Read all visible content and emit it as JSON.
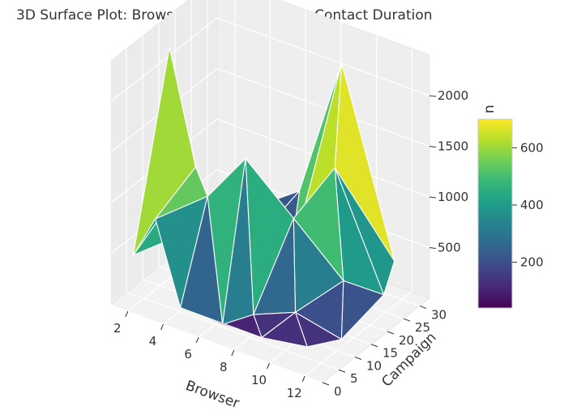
{
  "chart_data": {
    "type": "surface3d",
    "title": "3D Surface Plot: Browser vs. Campaign vs. Contact Duration",
    "xlabel": "Browser",
    "ylabel": "Campaign",
    "zlabel": "",
    "x_ticks": [
      "2",
      "4",
      "6",
      "8",
      "10",
      "12"
    ],
    "y_ticks": [
      "0",
      "5",
      "10",
      "15",
      "20",
      "25",
      "30"
    ],
    "z_ticks": [
      "500",
      "1000",
      "1500",
      "2000"
    ],
    "colorbar": {
      "label": "n",
      "ticks": [
        "200",
        "400",
        "600"
      ],
      "range": [
        40,
        700
      ],
      "colormap": "viridis"
    },
    "xlim": [
      1,
      13
    ],
    "ylim": [
      0,
      33
    ],
    "zlim": [
      0,
      2400
    ],
    "points": [
      {
        "x": 1.6,
        "y": 15,
        "z": 2200
      },
      {
        "x": 1.2,
        "y": 6,
        "z": 350
      },
      {
        "x": 1.8,
        "y": 26,
        "z": 200
      },
      {
        "x": 3.0,
        "y": 3,
        "z": 900
      },
      {
        "x": 3.2,
        "y": 18,
        "z": 250
      },
      {
        "x": 4.0,
        "y": 10,
        "z": 1300
      },
      {
        "x": 4.6,
        "y": 2,
        "z": 150
      },
      {
        "x": 5.0,
        "y": 22,
        "z": 300
      },
      {
        "x": 5.4,
        "y": 6,
        "z": 1200
      },
      {
        "x": 6.0,
        "y": 14,
        "z": 200
      },
      {
        "x": 6.2,
        "y": 30,
        "z": 700
      },
      {
        "x": 6.8,
        "y": 3,
        "z": 100
      },
      {
        "x": 7.0,
        "y": 9,
        "z": 1600
      },
      {
        "x": 7.4,
        "y": 20,
        "z": 250
      },
      {
        "x": 8.0,
        "y": 6,
        "z": 200
      },
      {
        "x": 8.4,
        "y": 32,
        "z": 600
      },
      {
        "x": 8.8,
        "y": 14,
        "z": 1000
      },
      {
        "x": 9.2,
        "y": 2,
        "z": 150
      },
      {
        "x": 9.5,
        "y": 25,
        "z": 2300
      },
      {
        "x": 10.0,
        "y": 8,
        "z": 300
      },
      {
        "x": 10.4,
        "y": 18,
        "z": 1500
      },
      {
        "x": 10.8,
        "y": 30,
        "z": 400
      },
      {
        "x": 11.4,
        "y": 4,
        "z": 150
      },
      {
        "x": 11.8,
        "y": 13,
        "z": 600
      },
      {
        "x": 12.3,
        "y": 26,
        "z": 500
      },
      {
        "x": 12.8,
        "y": 20,
        "z": 350
      },
      {
        "x": 12.6,
        "y": 8,
        "z": 200
      }
    ]
  }
}
